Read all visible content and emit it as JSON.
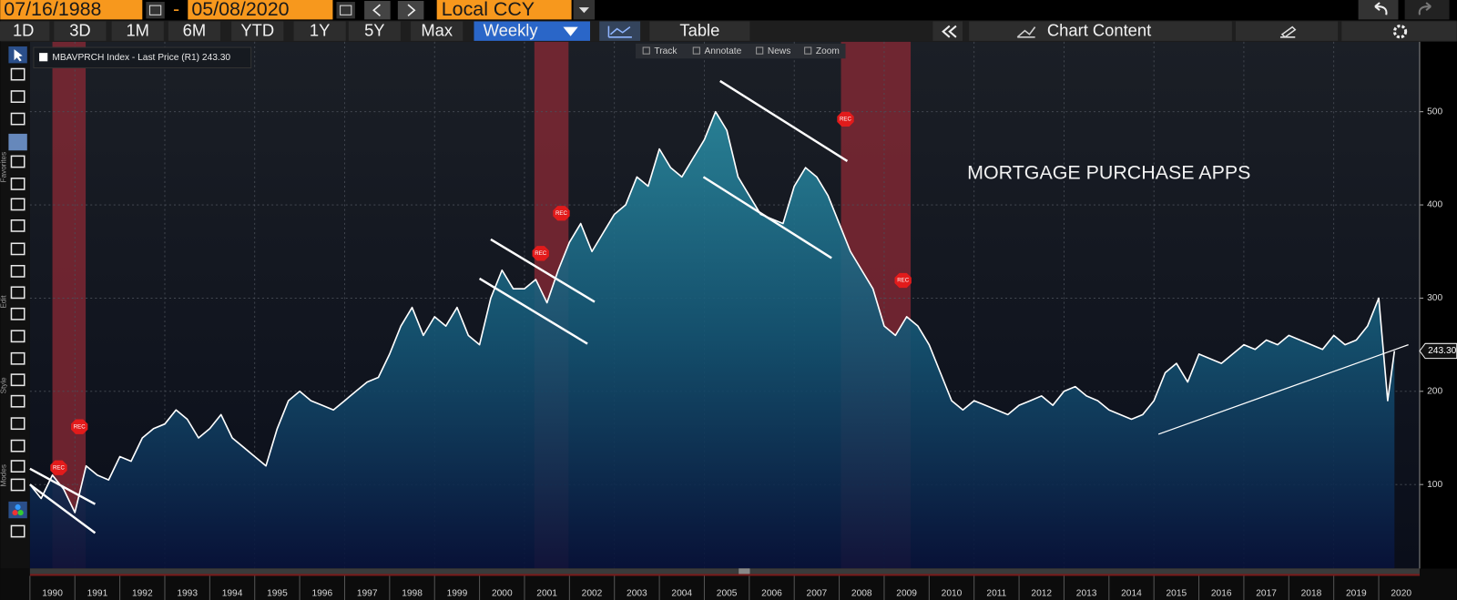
{
  "toolbar": {
    "start_date": "07/16/1988",
    "end_date": "05/08/2020",
    "separator": "-",
    "currency": "Local CCY",
    "periods": [
      "1D",
      "3D",
      "1M",
      "6M",
      "YTD",
      "1Y",
      "5Y",
      "Max"
    ],
    "frequency": "Weekly",
    "table": "Table",
    "chart_content": "Chart Content"
  },
  "chart_tools": [
    "Track",
    "Annotate",
    "News",
    "Zoom"
  ],
  "side_labels": [
    "Favorites",
    "Edit",
    "Style",
    "Modes"
  ],
  "chart_data": {
    "type": "line",
    "annotation": "MORTGAGE PURCHASE APPS",
    "series": [
      {
        "name": "MBAVPRCH Index - Last Price (R1) 243.30",
        "color": "#ffffff",
        "last_label": "243.30",
        "x": [
          1990,
          1990.25,
          1990.5,
          1990.75,
          1991,
          1991.25,
          1991.5,
          1991.75,
          1992,
          1992.25,
          1992.5,
          1992.75,
          1993,
          1993.25,
          1993.5,
          1993.75,
          1994,
          1994.25,
          1994.5,
          1994.75,
          1995,
          1995.25,
          1995.5,
          1995.75,
          1996,
          1996.25,
          1996.5,
          1996.75,
          1997,
          1997.25,
          1997.5,
          1997.75,
          1998,
          1998.25,
          1998.5,
          1998.75,
          1999,
          1999.25,
          1999.5,
          1999.75,
          2000,
          2000.25,
          2000.5,
          2000.75,
          2001,
          2001.25,
          2001.5,
          2001.75,
          2002,
          2002.25,
          2002.5,
          2002.75,
          2003,
          2003.25,
          2003.5,
          2003.75,
          2004,
          2004.25,
          2004.5,
          2004.75,
          2005,
          2005.25,
          2005.5,
          2005.75,
          2006,
          2006.25,
          2006.5,
          2006.75,
          2007,
          2007.25,
          2007.5,
          2007.75,
          2008,
          2008.25,
          2008.5,
          2008.75,
          2009,
          2009.25,
          2009.5,
          2009.75,
          2010,
          2010.25,
          2010.5,
          2010.75,
          2011,
          2011.25,
          2011.5,
          2011.75,
          2012,
          2012.25,
          2012.5,
          2012.75,
          2013,
          2013.25,
          2013.5,
          2013.75,
          2014,
          2014.25,
          2014.5,
          2014.75,
          2015,
          2015.25,
          2015.5,
          2015.75,
          2016,
          2016.25,
          2016.5,
          2016.75,
          2017,
          2017.25,
          2017.5,
          2017.75,
          2018,
          2018.25,
          2018.5,
          2018.75,
          2019,
          2019.25,
          2019.5,
          2019.75,
          2020,
          2020.2,
          2020.35
        ],
        "values": [
          100,
          85,
          110,
          95,
          70,
          120,
          110,
          105,
          130,
          125,
          150,
          160,
          165,
          180,
          170,
          150,
          160,
          175,
          150,
          140,
          130,
          120,
          160,
          190,
          200,
          190,
          185,
          180,
          190,
          200,
          210,
          215,
          240,
          270,
          290,
          260,
          280,
          270,
          290,
          260,
          250,
          300,
          330,
          310,
          310,
          320,
          295,
          330,
          360,
          380,
          350,
          370,
          390,
          400,
          430,
          420,
          460,
          440,
          430,
          450,
          470,
          500,
          480,
          430,
          410,
          390,
          385,
          380,
          420,
          440,
          430,
          410,
          380,
          350,
          330,
          310,
          270,
          260,
          280,
          270,
          250,
          220,
          190,
          180,
          190,
          185,
          180,
          175,
          185,
          190,
          195,
          185,
          200,
          205,
          195,
          190,
          180,
          175,
          170,
          175,
          190,
          220,
          230,
          210,
          240,
          235,
          230,
          240,
          250,
          245,
          255,
          250,
          260,
          255,
          250,
          245,
          260,
          250,
          255,
          270,
          300,
          190,
          243.3
        ]
      }
    ],
    "recessions": [
      [
        1990.5,
        1991.24
      ],
      [
        2001.22,
        2001.98
      ],
      [
        2008.04,
        2009.59
      ]
    ],
    "recession_markers": [
      {
        "label": "REC",
        "x": 1990.64,
        "y": 118
      },
      {
        "label": "REC",
        "x": 1991.1,
        "y": 162
      },
      {
        "label": "REC",
        "x": 2001.36,
        "y": 348
      },
      {
        "label": "REC",
        "x": 2001.82,
        "y": 391
      },
      {
        "label": "REC",
        "x": 2008.14,
        "y": 492
      },
      {
        "label": "REC",
        "x": 2009.42,
        "y": 319
      }
    ],
    "trend_lines": [
      [
        [
          1990.0,
          117
        ],
        [
          1991.45,
          79
        ]
      ],
      [
        [
          1990.0,
          100
        ],
        [
          1991.45,
          48
        ]
      ],
      [
        [
          2000.25,
          363
        ],
        [
          2002.56,
          296
        ]
      ],
      [
        [
          2000.0,
          321
        ],
        [
          2002.4,
          251
        ]
      ],
      [
        [
          2005.35,
          533
        ],
        [
          2008.18,
          447
        ]
      ],
      [
        [
          2004.98,
          430
        ],
        [
          2007.83,
          343
        ]
      ],
      [
        [
          2015.1,
          154
        ],
        [
          2020.66,
          250
        ]
      ]
    ],
    "xlim": [
      1990,
      2020.91
    ],
    "xticks": [
      1990,
      1991,
      1992,
      1993,
      1994,
      1995,
      1996,
      1997,
      1998,
      1999,
      2000,
      2001,
      2002,
      2003,
      2004,
      2005,
      2006,
      2007,
      2008,
      2009,
      2010,
      2011,
      2012,
      2013,
      2014,
      2015,
      2016,
      2017,
      2018,
      2019,
      2020
    ],
    "ylim": [
      10,
      575
    ],
    "yticks": [
      100,
      200,
      300,
      400,
      500
    ],
    "grid": true
  }
}
